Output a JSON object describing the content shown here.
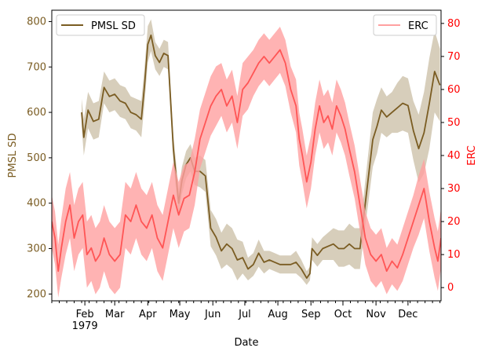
{
  "colors": {
    "pmsl": "#7a5c22",
    "pmsl_band": "#cdc2aa",
    "erc": "#ff5555",
    "erc_band": "#ffa0a0",
    "erc_axis": "#ff0000",
    "pmsl_axis": "#7a5c22"
  },
  "chart_data": {
    "type": "line",
    "xlabel": "Date",
    "x_unit": "day of year, 1979",
    "x_ticks": [
      {
        "day": 32,
        "label": "Feb",
        "sublabel": "1979"
      },
      {
        "day": 60,
        "label": "Mar"
      },
      {
        "day": 91,
        "label": "Apr"
      },
      {
        "day": 121,
        "label": "May"
      },
      {
        "day": 152,
        "label": "Jun"
      },
      {
        "day": 182,
        "label": "Jul"
      },
      {
        "day": 213,
        "label": "Aug"
      },
      {
        "day": 244,
        "label": "Sep"
      },
      {
        "day": 274,
        "label": "Oct"
      },
      {
        "day": 305,
        "label": "Nov"
      },
      {
        "day": 335,
        "label": "Dec"
      }
    ],
    "xlim": [
      1,
      366
    ],
    "left_axis": {
      "label": "PMSL SD",
      "ylim": [
        185,
        825
      ],
      "ticks": [
        200,
        300,
        400,
        500,
        600,
        700,
        800
      ]
    },
    "right_axis": {
      "label": "ERC",
      "ylim": [
        -4,
        84
      ],
      "ticks": [
        0,
        10,
        20,
        30,
        40,
        50,
        60,
        70,
        80
      ]
    },
    "legend_left": {
      "label": "PMSL SD",
      "position": "upper-left"
    },
    "legend_right": {
      "label": "ERC",
      "position": "upper-right"
    },
    "series": [
      {
        "name": "PMSL SD",
        "axis": "left",
        "x": [
          29,
          31,
          35,
          40,
          45,
          50,
          55,
          60,
          65,
          70,
          75,
          80,
          85,
          88,
          91,
          94,
          98,
          102,
          106,
          110,
          115,
          120,
          123,
          127,
          131,
          135,
          140,
          145,
          150,
          155,
          160,
          165,
          170,
          175,
          180,
          185,
          190,
          195,
          200,
          205,
          210,
          215,
          220,
          225,
          230,
          235,
          240,
          243,
          245,
          250,
          255,
          260,
          265,
          270,
          275,
          280,
          285,
          290,
          292,
          295,
          298,
          302,
          306,
          310,
          315,
          320,
          325,
          330,
          335,
          340,
          345,
          350,
          355,
          360,
          365
        ],
        "y": [
          600,
          545,
          605,
          580,
          585,
          655,
          635,
          640,
          625,
          620,
          600,
          595,
          585,
          660,
          750,
          770,
          725,
          710,
          730,
          725,
          520,
          400,
          450,
          485,
          500,
          470,
          470,
          460,
          345,
          325,
          295,
          310,
          300,
          275,
          280,
          255,
          265,
          290,
          270,
          275,
          270,
          265,
          265,
          265,
          270,
          255,
          235,
          245,
          300,
          285,
          300,
          305,
          310,
          300,
          300,
          310,
          300,
          300,
          340,
          400,
          460,
          540,
          570,
          605,
          590,
          600,
          610,
          620,
          615,
          560,
          520,
          555,
          620,
          690,
          660
        ],
        "band": [
          30,
          40,
          40,
          40,
          40,
          35,
          35,
          35,
          35,
          35,
          35,
          35,
          40,
          40,
          40,
          35,
          30,
          30,
          30,
          30,
          30,
          30,
          30,
          30,
          30,
          30,
          35,
          35,
          40,
          40,
          40,
          45,
          45,
          45,
          35,
          25,
          25,
          30,
          25,
          20,
          20,
          20,
          20,
          20,
          25,
          20,
          15,
          15,
          25,
          25,
          25,
          30,
          35,
          40,
          40,
          45,
          45,
          45,
          45,
          50,
          55,
          60,
          60,
          50,
          45,
          45,
          55,
          60,
          60,
          65,
          75,
          90,
          100,
          90,
          80
        ]
      },
      {
        "name": "ERC",
        "axis": "right",
        "x": [
          1,
          4,
          7,
          10,
          14,
          18,
          22,
          26,
          30,
          34,
          38,
          42,
          46,
          50,
          55,
          60,
          65,
          70,
          75,
          80,
          85,
          90,
          95,
          100,
          105,
          110,
          115,
          120,
          125,
          130,
          135,
          140,
          145,
          150,
          155,
          160,
          165,
          170,
          175,
          180,
          185,
          190,
          195,
          200,
          205,
          210,
          215,
          220,
          225,
          230,
          233,
          236,
          240,
          244,
          248,
          252,
          256,
          260,
          264,
          268,
          272,
          276,
          280,
          285,
          290,
          295,
          300,
          305,
          310,
          315,
          320,
          325,
          330,
          335,
          340,
          345,
          350,
          355,
          360,
          363,
          366
        ],
        "y": [
          20,
          15,
          5,
          12,
          20,
          25,
          15,
          20,
          22,
          10,
          12,
          8,
          10,
          15,
          10,
          8,
          10,
          22,
          20,
          25,
          20,
          18,
          22,
          15,
          12,
          20,
          28,
          22,
          27,
          28,
          35,
          45,
          50,
          55,
          58,
          60,
          55,
          58,
          50,
          60,
          62,
          65,
          68,
          70,
          68,
          70,
          72,
          68,
          60,
          55,
          45,
          40,
          32,
          38,
          48,
          55,
          50,
          52,
          48,
          55,
          52,
          48,
          42,
          35,
          25,
          15,
          10,
          8,
          10,
          5,
          8,
          6,
          10,
          15,
          20,
          25,
          30,
          20,
          12,
          8,
          15
        ],
        "band": [
          8,
          8,
          8,
          9,
          10,
          10,
          10,
          10,
          10,
          10,
          10,
          10,
          10,
          10,
          10,
          10,
          10,
          10,
          10,
          10,
          10,
          10,
          10,
          10,
          10,
          10,
          10,
          10,
          10,
          10,
          10,
          9,
          9,
          9,
          9,
          8,
          8,
          8,
          8,
          8,
          8,
          7,
          7,
          7,
          7,
          7,
          7,
          7,
          7,
          8,
          8,
          8,
          8,
          8,
          8,
          8,
          8,
          8,
          8,
          8,
          8,
          8,
          8,
          8,
          8,
          8,
          8,
          8,
          8,
          7,
          7,
          7,
          8,
          8,
          8,
          9,
          9,
          9,
          9,
          9,
          9
        ]
      }
    ]
  }
}
